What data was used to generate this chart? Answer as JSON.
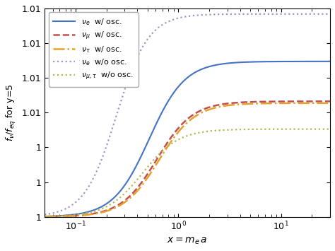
{
  "title": "",
  "xlim": [
    0.05,
    30
  ],
  "ylim": [
    1.0,
    1.012
  ],
  "yticks": [
    1.0,
    1.002,
    1.004,
    1.006,
    1.008,
    1.01,
    1.012
  ],
  "lines": [
    {
      "label_latex": "$\\nu_e$  w/ osc.",
      "color": "#4472c4",
      "linestyle": "solid",
      "linewidth": 1.5,
      "asymptote": 1.00895,
      "x_mid": 0.52,
      "slope": 2.5
    },
    {
      "label_latex": "$\\nu_\\mu$  w/ osc.",
      "color": "#c0504d",
      "linestyle": "dashed",
      "linewidth": 1.8,
      "asymptote": 1.00665,
      "x_mid": 0.62,
      "slope": 2.5
    },
    {
      "label_latex": "$\\nu_\\tau$  w/ osc.",
      "color": "#e8a02a",
      "linestyle": "dashdot",
      "linewidth": 1.8,
      "asymptote": 1.00655,
      "x_mid": 0.65,
      "slope": 2.5
    },
    {
      "label_latex": "$\\nu_e$  w/o osc.",
      "color": "#9999cc",
      "linestyle": "dotted",
      "linewidth": 1.6,
      "asymptote": 1.01168,
      "x_mid": 0.25,
      "slope": 2.8
    },
    {
      "label_latex": "$\\nu_{\\mu,\\tau}$  w/o osc.",
      "color": "#b5b84a",
      "linestyle": "dotted",
      "linewidth": 1.6,
      "asymptote": 1.00505,
      "x_mid": 0.45,
      "slope": 2.5
    }
  ],
  "background_color": "#ffffff",
  "legend_fontsize": 8.0
}
